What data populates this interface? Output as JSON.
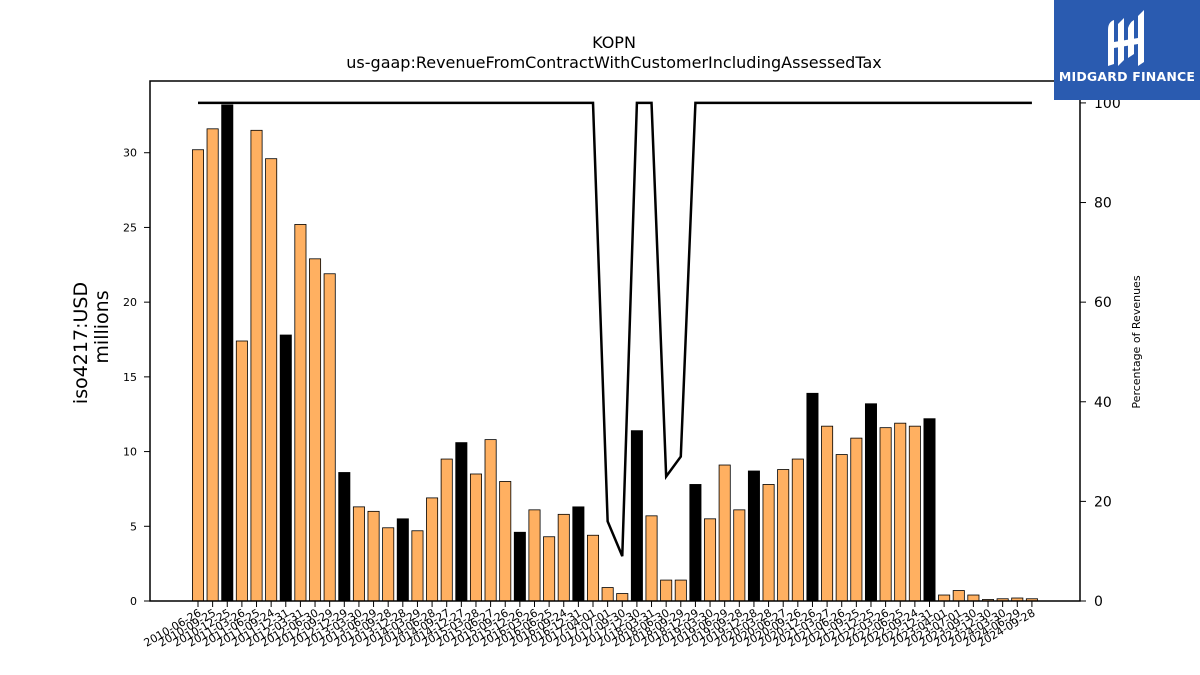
{
  "chart_data": {
    "type": "bar",
    "title": "KOPN",
    "subtitle": "us-gaap:RevenueFromContractWithCustomerIncludingAssessedTax",
    "ylabel": "iso4217:USD",
    "ylabel_unit": "millions",
    "y2label": "Percentage of Revenues",
    "ylim": [
      0,
      34.8
    ],
    "y2lim": [
      0,
      104.4
    ],
    "yticks": [
      "0",
      "5",
      "10",
      "15",
      "20",
      "25",
      "30"
    ],
    "y2ticks": [
      "0",
      "20",
      "40",
      "60",
      "80",
      "100"
    ],
    "bar_colors": {
      "quarter": "#ffb061",
      "annual": "#000000"
    },
    "line_color": "#000000",
    "categories": [
      "2010-06-26",
      "2010-09-25",
      "2010-12-25",
      "2011-03-26",
      "2011-06-25",
      "2011-09-24",
      "2011-12-31",
      "2012-03-31",
      "2012-06-30",
      "2012-09-29",
      "2012-12-29",
      "2013-03-30",
      "2013-06-29",
      "2013-09-28",
      "2013-12-28",
      "2014-03-29",
      "2014-06-28",
      "2014-09-27",
      "2014-12-27",
      "2015-03-28",
      "2015-06-27",
      "2015-09-26",
      "2015-12-26",
      "2016-03-26",
      "2016-06-25",
      "2016-09-24",
      "2016-12-31",
      "2017-04-01",
      "2017-07-01",
      "2017-09-30",
      "2017-12-30",
      "2018-03-31",
      "2018-06-30",
      "2018-09-29",
      "2018-12-29",
      "2019-03-30",
      "2019-06-29",
      "2019-09-28",
      "2019-12-28",
      "2020-03-28",
      "2020-06-27",
      "2020-09-26",
      "2020-12-26",
      "2021-03-27",
      "2021-06-26",
      "2021-09-25",
      "2021-12-25",
      "2022-03-26",
      "2022-06-25",
      "2022-09-24",
      "2022-12-31",
      "2023-04-01",
      "2023-07-01",
      "2023-09-30",
      "2023-12-30",
      "2024-03-30",
      "2024-06-29",
      "2024-09-28"
    ],
    "values": [
      30.2,
      31.6,
      33.2,
      17.4,
      31.5,
      29.6,
      17.8,
      25.2,
      22.9,
      21.9,
      8.6,
      6.3,
      6.0,
      4.9,
      5.5,
      4.7,
      6.9,
      9.5,
      10.6,
      8.5,
      10.8,
      8.0,
      4.6,
      6.1,
      4.3,
      5.8,
      6.3,
      4.4,
      0.9,
      0.5,
      11.4,
      5.7,
      1.4,
      1.4,
      7.8,
      5.5,
      9.1,
      6.1,
      8.7,
      7.8,
      8.8,
      9.5,
      13.9,
      11.7,
      9.8,
      10.9,
      13.2,
      11.6,
      11.9,
      11.7,
      12.2,
      0.4,
      0.7,
      0.4,
      0.1,
      0.15,
      0.2,
      0.15
    ],
    "annual_flags": [
      false,
      false,
      true,
      false,
      false,
      false,
      true,
      false,
      false,
      false,
      true,
      false,
      false,
      false,
      true,
      false,
      false,
      false,
      true,
      false,
      false,
      false,
      true,
      false,
      false,
      false,
      true,
      false,
      false,
      false,
      true,
      false,
      false,
      false,
      true,
      false,
      false,
      false,
      true,
      false,
      false,
      false,
      true,
      false,
      false,
      false,
      true,
      false,
      false,
      false,
      true,
      false,
      false,
      false,
      false,
      false,
      false,
      false
    ],
    "percentage": [
      100,
      100,
      100,
      100,
      100,
      100,
      100,
      100,
      100,
      100,
      100,
      100,
      100,
      100,
      100,
      100,
      100,
      100,
      100,
      100,
      100,
      100,
      100,
      100,
      100,
      100,
      100,
      100,
      16,
      9,
      100,
      100,
      25,
      29,
      100,
      100,
      100,
      100,
      100,
      100,
      100,
      100,
      100,
      100,
      100,
      100,
      100,
      100,
      100,
      100,
      100,
      100,
      100,
      100,
      100,
      100,
      100,
      100
    ]
  },
  "logo": {
    "text": "MIDGARD FINANCE"
  }
}
